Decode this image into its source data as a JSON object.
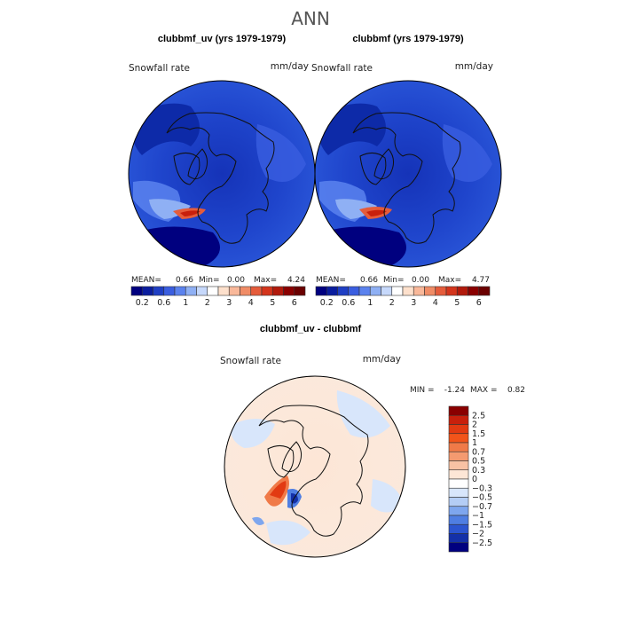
{
  "figure_title": "ANN",
  "chart_data": [
    {
      "type": "heatmap",
      "title": "clubbmf_uv (yrs 1979-1979)",
      "variable": "Snowfall rate",
      "units": "mm/day",
      "projection": "polar-stereographic-north",
      "stats": {
        "mean_label": "MEAN=",
        "mean": "0.66",
        "min_label": "Min=",
        "min": "0.00",
        "max_label": "Max=",
        "max": "4.24"
      },
      "colorbar": {
        "levels": [
          0.2,
          0.4,
          0.6,
          0.8,
          1,
          1.5,
          2,
          2.5,
          3,
          3.5,
          4,
          4.5,
          5,
          5.5,
          6
        ],
        "tick_labels": [
          "0.2",
          "0.6",
          "1",
          "2",
          "3",
          "4",
          "5",
          "6"
        ],
        "colors": [
          "#00007f",
          "#0a1d9e",
          "#1f3fc4",
          "#3a5ee0",
          "#5b82ee",
          "#8fb0f4",
          "#c6d8fb",
          "#ffffff",
          "#fde0cc",
          "#f9b89a",
          "#f08c66",
          "#e55c3b",
          "#d4351c",
          "#b21a0c",
          "#8a0000",
          "#6a0000"
        ]
      }
    },
    {
      "type": "heatmap",
      "title": "clubbmf (yrs 1979-1979)",
      "variable": "Snowfall rate",
      "units": "mm/day",
      "projection": "polar-stereographic-north",
      "stats": {
        "mean_label": "MEAN=",
        "mean": "0.66",
        "min_label": "Min=",
        "min": "0.00",
        "max_label": "Max=",
        "max": "4.77"
      },
      "colorbar": {
        "levels": [
          0.2,
          0.4,
          0.6,
          0.8,
          1,
          1.5,
          2,
          2.5,
          3,
          3.5,
          4,
          4.5,
          5,
          5.5,
          6
        ],
        "tick_labels": [
          "0.2",
          "0.6",
          "1",
          "2",
          "3",
          "4",
          "5",
          "6"
        ],
        "colors": [
          "#00007f",
          "#0a1d9e",
          "#1f3fc4",
          "#3a5ee0",
          "#5b82ee",
          "#8fb0f4",
          "#c6d8fb",
          "#ffffff",
          "#fde0cc",
          "#f9b89a",
          "#f08c66",
          "#e55c3b",
          "#d4351c",
          "#b21a0c",
          "#8a0000",
          "#6a0000"
        ]
      }
    },
    {
      "type": "heatmap",
      "title": "clubbmf_uv - clubbmf",
      "variable": "Snowfall rate",
      "units": "mm/day",
      "projection": "polar-stereographic-north",
      "stats": {
        "min_label": "MIN =",
        "min": "-1.24",
        "max_label": "MAX =",
        "max": "0.82"
      },
      "colorbar": {
        "orientation": "vertical",
        "levels": [
          -2.5,
          -2,
          -1.5,
          -1,
          -0.7,
          -0.5,
          -0.3,
          0,
          0.3,
          0.5,
          0.7,
          1,
          1.5,
          2,
          2.5
        ],
        "tick_labels": [
          "2.5",
          "2",
          "1.5",
          "1",
          "0.7",
          "0.5",
          "0.3",
          "0",
          "−0.3",
          "−0.5",
          "−0.7",
          "−1",
          "−1.5",
          "−2",
          "−2.5"
        ],
        "colors": [
          "#8a0000",
          "#c8200c",
          "#e23a12",
          "#f2541a",
          "#f07a48",
          "#f49a70",
          "#f8c2a4",
          "#fde6d6",
          "#ffffff",
          "#d8e6fb",
          "#b4cdf5",
          "#7ea6ee",
          "#4f7ee2",
          "#2c55d0",
          "#1430a8",
          "#00007f"
        ]
      }
    }
  ]
}
